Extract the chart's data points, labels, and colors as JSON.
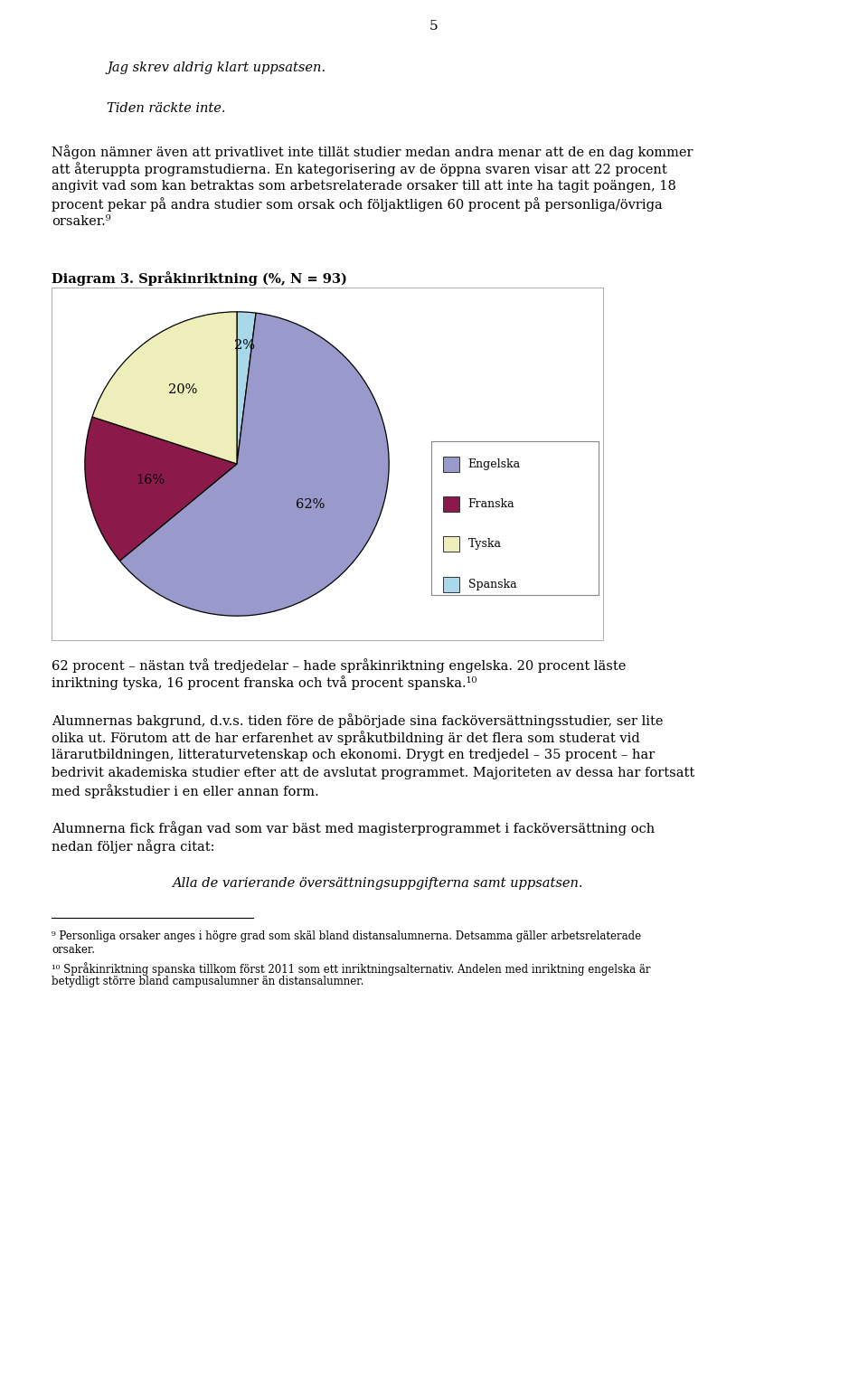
{
  "page_number": "5",
  "italic_quote1": "Jag skrev aldrig klart uppsatsen.",
  "italic_quote2": "Tiden räckte inte.",
  "para1_lines": [
    "Någon nämner även att privatlivet inte tillät studier medan andra menar att de en dag kommer",
    "att återuppta programstudierna. En kategorisering av de öppna svaren visar att 22 procent",
    "angivit vad som kan betraktas som arbetsrelaterade orsaker till att inte ha tagit poängen, 18",
    "procent pekar på andra studier som orsak och följaktligen 60 procent på personliga/övriga",
    "orsaker.⁹"
  ],
  "diagram_title": "Diagram 3. Språkinriktning (%, N = 93)",
  "pie_values": [
    62,
    16,
    20,
    2
  ],
  "pie_labels": [
    "Engelska",
    "Franska",
    "Tyska",
    "Spanska"
  ],
  "pie_colors": [
    "#9999CC",
    "#8B1A4A",
    "#EEEEBB",
    "#A8D8EA"
  ],
  "pie_pct_labels": [
    "62%",
    "16%",
    "20%",
    "2%"
  ],
  "para2_lines": [
    "62 procent – nästan två tredjedelar – hade språkinriktning engelska. 20 procent läste",
    "inriktning tyska, 16 procent franska och två procent spanska.¹⁰"
  ],
  "para3_lines": [
    "Alumnernas bakgrund, d.v.s. tiden före de påbörjade sina facköversättningsstudier, ser lite",
    "olika ut. Förutom att de har erfarenhet av språkutbildning är det flera som studerat vid",
    "lärarutbildningen, litteraturvetenskap och ekonomi. Drygt en tredjedel – 35 procent – har",
    "bedrivit akademiska studier efter att de avslutat programmet. Majoriteten av dessa har fortsatt",
    "med språkstudier i en eller annan form."
  ],
  "para4_lines": [
    "Alumnerna fick frågan vad som var bäst med magisterprogrammet i facköversättning och",
    "nedan följer några citat:"
  ],
  "italic_quote3": "Alla de varierande översättningsuppgifterna samt uppsatsen.",
  "fn9_lines": [
    "⁹ Personliga orsaker anges i högre grad som skäl bland distansalumnerna. Detsamma gäller arbetsrelaterade",
    "orsaker."
  ],
  "fn10_lines": [
    "¹⁰ Språkinriktning spanska tillkom först 2011 som ett inriktningsalternativ. Andelen med inriktning engelska är",
    "betydligt större bland campusalumner än distansalumner."
  ],
  "bg_color": "#ffffff"
}
